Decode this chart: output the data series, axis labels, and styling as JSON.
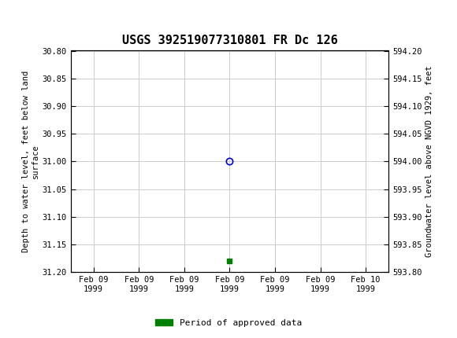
{
  "title": "USGS 392519077310801 FR Dc 126",
  "ylabel_left": "Depth to water level, feet below land\nsurface",
  "ylabel_right": "Groundwater level above NGVD 1929, feet",
  "ylim_left_top": 30.8,
  "ylim_left_bottom": 31.2,
  "ylim_right_top": 594.2,
  "ylim_right_bottom": 593.8,
  "yticks_left": [
    30.8,
    30.85,
    30.9,
    30.95,
    31.0,
    31.05,
    31.1,
    31.15,
    31.2
  ],
  "ytick_labels_left": [
    "30.80",
    "30.85",
    "30.90",
    "30.95",
    "31.00",
    "31.05",
    "31.10",
    "31.15",
    "31.20"
  ],
  "yticks_right": [
    594.2,
    594.15,
    594.1,
    594.05,
    594.0,
    593.95,
    593.9,
    593.85,
    593.8
  ],
  "ytick_labels_right": [
    "594.20",
    "594.15",
    "594.10",
    "594.05",
    "594.00",
    "593.95",
    "593.90",
    "593.85",
    "593.80"
  ],
  "xtick_labels": [
    "Feb 09\n1999",
    "Feb 09\n1999",
    "Feb 09\n1999",
    "Feb 09\n1999",
    "Feb 09\n1999",
    "Feb 09\n1999",
    "Feb 10\n1999"
  ],
  "xtick_positions": [
    0,
    1,
    2,
    3,
    4,
    5,
    6
  ],
  "xlim": [
    -0.5,
    6.5
  ],
  "data_point_x": 3.0,
  "data_point_y": 31.0,
  "data_point_color": "#0000cc",
  "green_marker_x": 3.0,
  "green_marker_y": 31.18,
  "green_marker_color": "#008000",
  "legend_label": "Period of approved data",
  "legend_color": "#008000",
  "header_bg_color": "#1a6b3c",
  "header_text_color": "#ffffff",
  "background_color": "#ffffff",
  "grid_color": "#cccccc",
  "font_family": "monospace",
  "title_fontsize": 11,
  "axis_label_fontsize": 7.5,
  "tick_fontsize": 7.5,
  "legend_fontsize": 8,
  "fig_width": 5.8,
  "fig_height": 4.3,
  "dpi": 100
}
